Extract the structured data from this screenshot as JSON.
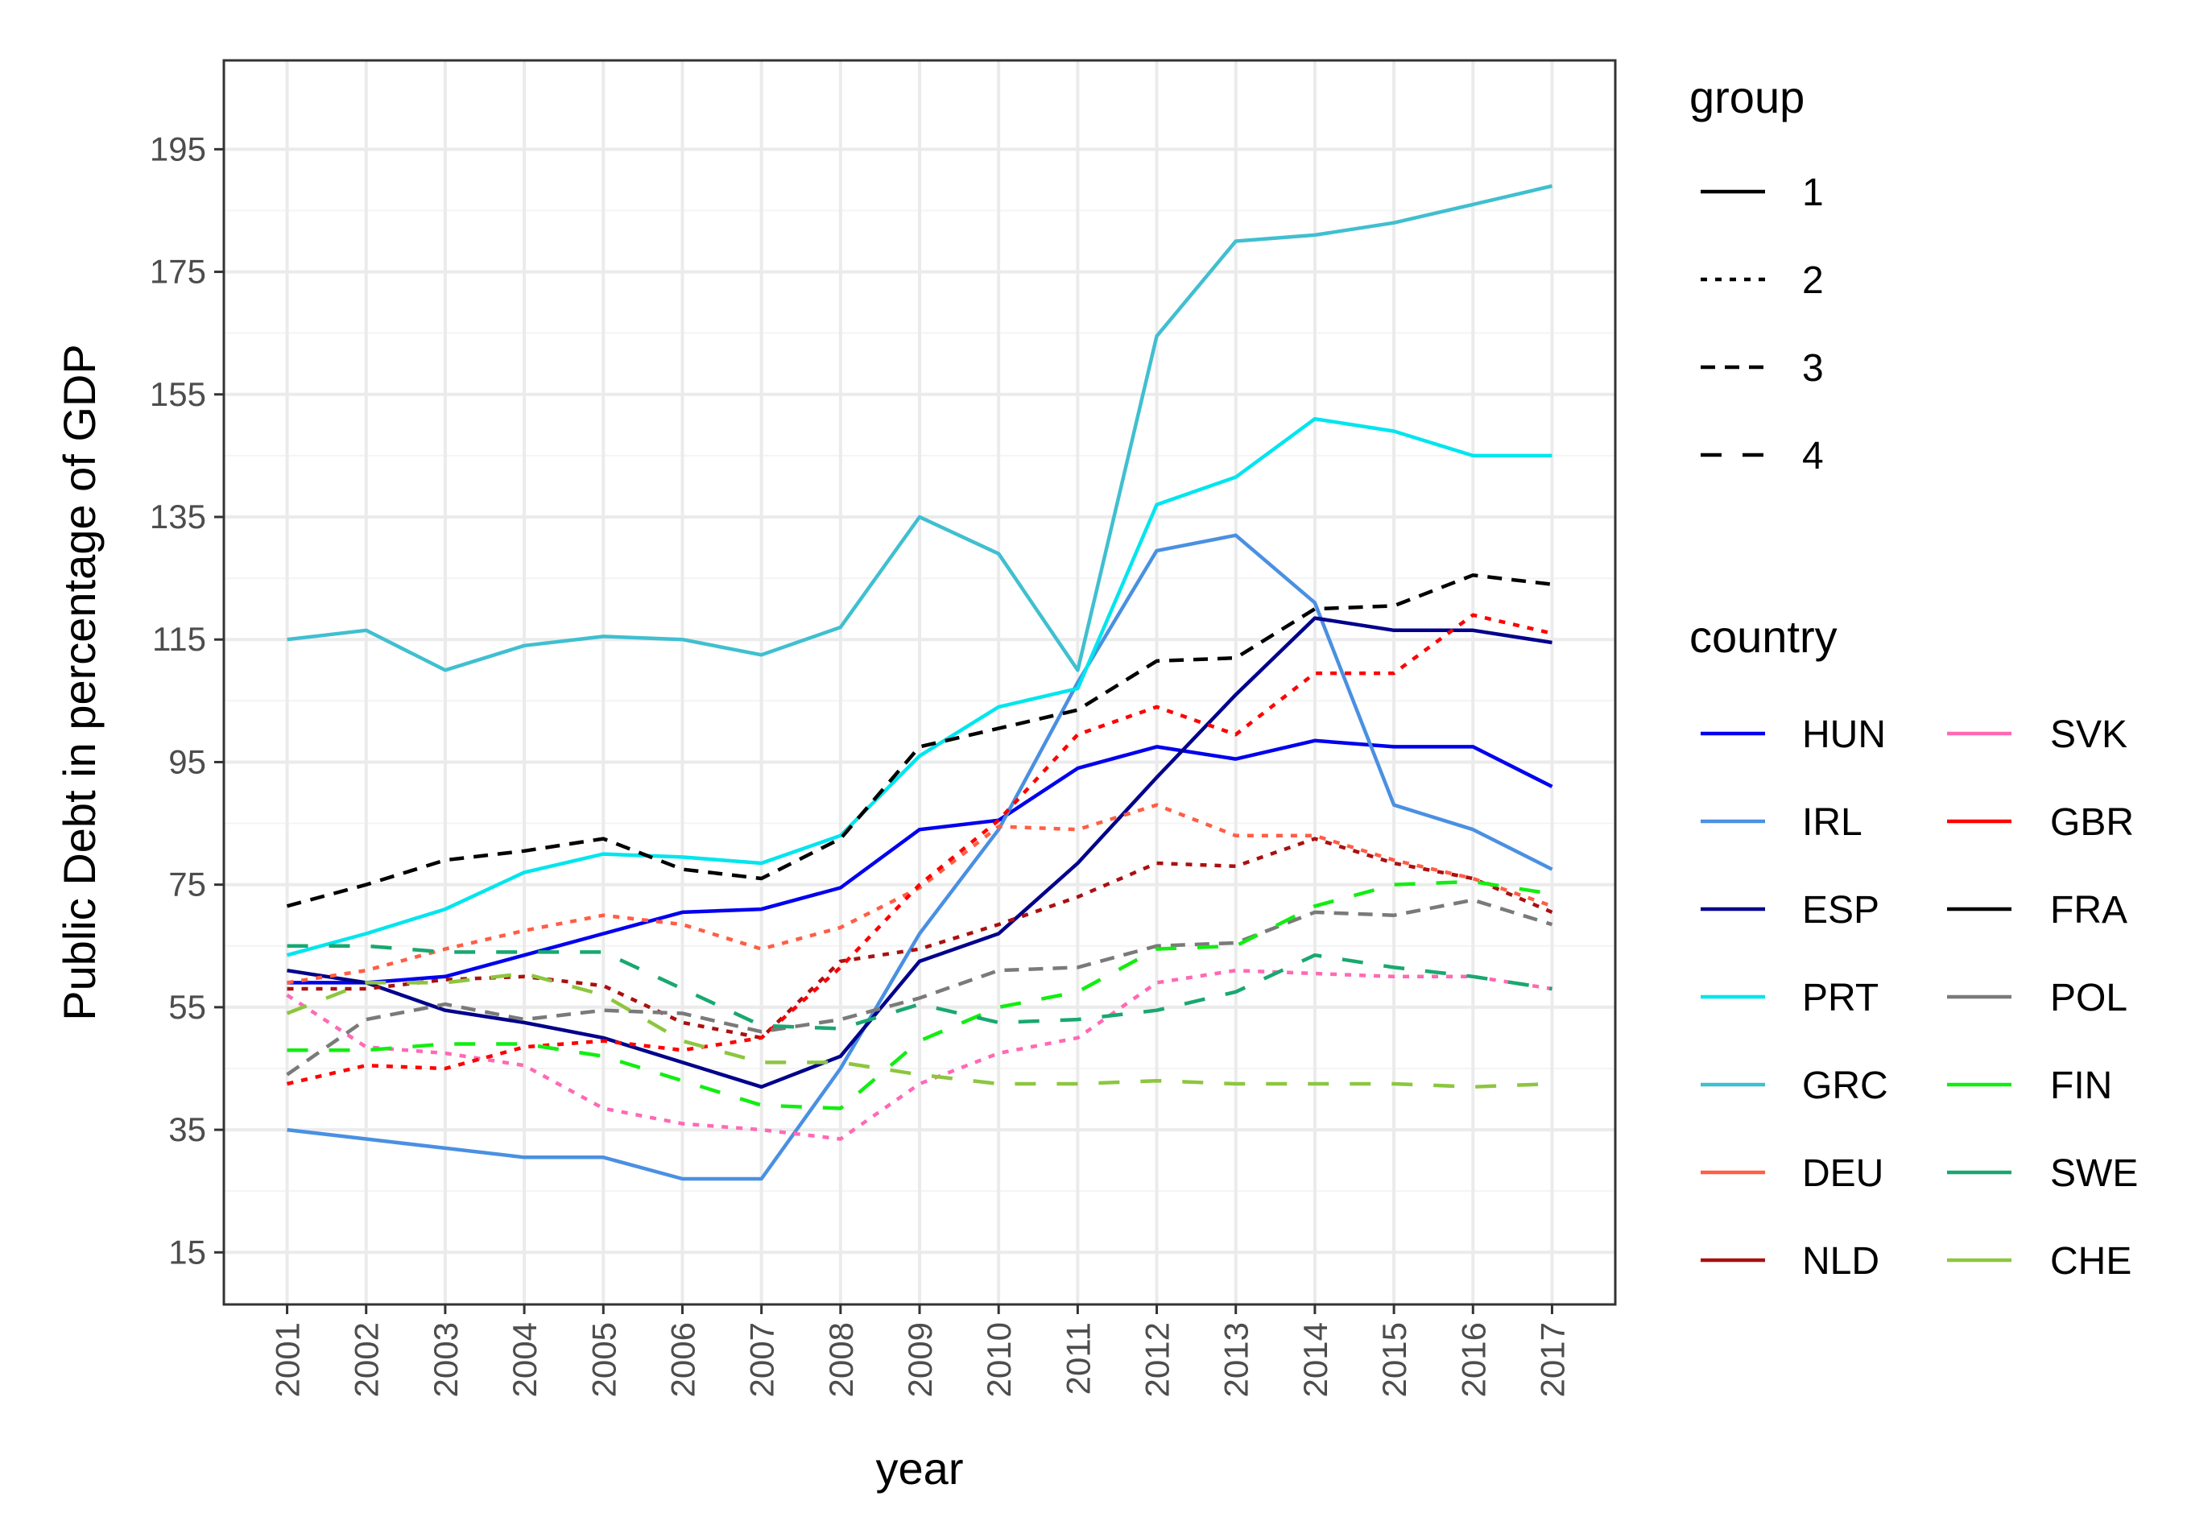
{
  "chart_data": {
    "type": "line",
    "title": "",
    "xlabel": "year",
    "ylabel": "Public Debt in percentage of GDP",
    "x": [
      2001,
      2002,
      2003,
      2004,
      2005,
      2006,
      2007,
      2008,
      2009,
      2010,
      2011,
      2012,
      2013,
      2014,
      2015,
      2016,
      2017
    ],
    "x_tick_labels": [
      "2001",
      "2002",
      "2003",
      "2004",
      "2005",
      "2006",
      "2007",
      "2008",
      "2009",
      "2010",
      "2011",
      "2012",
      "2013",
      "2014",
      "2015",
      "2016",
      "2017"
    ],
    "y_ticks": [
      15,
      35,
      55,
      75,
      95,
      115,
      135,
      155,
      175,
      195
    ],
    "y_tick_labels": [
      "15",
      "35",
      "55",
      "75",
      "95",
      "115",
      "135",
      "155",
      "175",
      "195"
    ],
    "ylim": [
      6.5,
      209.5
    ],
    "xlim": [
      2000.2,
      2017.8
    ],
    "grid": true,
    "legend_position": "right",
    "legend_group_title": "group",
    "legend_country_title": "country",
    "groups": [
      {
        "label": "1",
        "dash": "solid"
      },
      {
        "label": "2",
        "dash": "dotted"
      },
      {
        "label": "3",
        "dash": "dashed"
      },
      {
        "label": "4",
        "dash": "longdash"
      }
    ],
    "series": [
      {
        "name": "HUN",
        "group": "1",
        "color": "#0000ee",
        "values": [
          59,
          59,
          60,
          63.5,
          67,
          70.5,
          71,
          74.5,
          84,
          85.5,
          94,
          97.5,
          95.5,
          98.5,
          97.5,
          97.5,
          91
        ]
      },
      {
        "name": "IRL",
        "group": "1",
        "color": "#4a90e2",
        "values": [
          35,
          33.5,
          32,
          30.5,
          30.5,
          27,
          27,
          45,
          67,
          84,
          108,
          129.5,
          132,
          121,
          88,
          84,
          77.5
        ]
      },
      {
        "name": "ESP",
        "group": "1",
        "color": "#00008b",
        "values": [
          61,
          59,
          54.5,
          52.5,
          50,
          46,
          42,
          47,
          62.5,
          67,
          78.5,
          92.5,
          106,
          118.5,
          116.5,
          116.5,
          114.5
        ]
      },
      {
        "name": "PRT",
        "group": "1",
        "color": "#00e5ee",
        "values": [
          63.5,
          67,
          71,
          77,
          80,
          79.5,
          78.5,
          83,
          96,
          104,
          107,
          137,
          141.5,
          151,
          149,
          145,
          145
        ]
      },
      {
        "name": "GRC",
        "group": "1",
        "color": "#40bfd0",
        "values": [
          115,
          116.5,
          110,
          114,
          115.5,
          115,
          112.5,
          117,
          135,
          129,
          110,
          164.5,
          180,
          181,
          183,
          186,
          189
        ]
      },
      {
        "name": "DEU",
        "group": "2",
        "color": "#ff5e45",
        "values": [
          59,
          61,
          64.5,
          67.5,
          70,
          68.5,
          64.5,
          68,
          74.5,
          84.5,
          84,
          88,
          83,
          83,
          79,
          76,
          71.5
        ]
      },
      {
        "name": "NLD",
        "group": "2",
        "color": "#aa1010",
        "values": [
          58,
          58,
          59.5,
          60,
          58.5,
          52.5,
          50,
          62.5,
          64.5,
          68.5,
          73,
          78.5,
          78,
          82.5,
          78.5,
          76,
          70.5
        ]
      },
      {
        "name": "SVK",
        "group": "2",
        "color": "#ff69b4",
        "values": [
          57,
          48.5,
          47.5,
          45.5,
          38.5,
          36,
          35,
          33.5,
          42.5,
          47.5,
          50,
          59,
          61,
          60.5,
          60,
          60,
          58
        ]
      },
      {
        "name": "GBR",
        "group": "2",
        "color": "#ff0000",
        "values": [
          42.5,
          45.5,
          45,
          48.5,
          49.5,
          48,
          50,
          61.5,
          75,
          85.5,
          99.5,
          104,
          99.5,
          109.5,
          109.5,
          119,
          116
        ]
      },
      {
        "name": "FRA",
        "group": "3",
        "color": "#000000",
        "values": [
          71.5,
          75,
          79,
          80.5,
          82.5,
          77.5,
          76,
          82.5,
          97.5,
          100.5,
          103.5,
          111.5,
          112,
          120,
          120.5,
          125.5,
          124
        ]
      },
      {
        "name": "POL",
        "group": "3",
        "color": "#7a7a7a",
        "values": [
          44,
          53,
          55.5,
          53,
          54.5,
          54,
          51,
          53,
          56.5,
          61,
          61.5,
          65,
          65.5,
          70.5,
          70,
          72.5,
          68.5
        ]
      },
      {
        "name": "FIN",
        "group": "4",
        "color": "#11ee11",
        "values": [
          48,
          48,
          49,
          49,
          47,
          43,
          39,
          38.5,
          49.5,
          55,
          57.5,
          64.5,
          65,
          71.5,
          75,
          75.5,
          73.5
        ]
      },
      {
        "name": "SWE",
        "group": "4",
        "color": "#18a870",
        "values": [
          65,
          65,
          64,
          64,
          64,
          58,
          52,
          51.5,
          55.5,
          52.5,
          53,
          54.5,
          57.5,
          63.5,
          61.5,
          60,
          58
        ]
      },
      {
        "name": "CHE",
        "group": "4",
        "color": "#8cc63f",
        "values": [
          54,
          59,
          59,
          60.5,
          57,
          49.5,
          46,
          46,
          44,
          42.5,
          42.5,
          43,
          42.5,
          42.5,
          42.5,
          42,
          42.5
        ]
      }
    ]
  }
}
